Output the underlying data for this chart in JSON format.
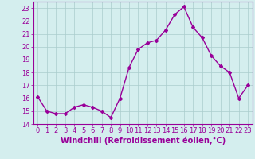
{
  "x": [
    0,
    1,
    2,
    3,
    4,
    5,
    6,
    7,
    8,
    9,
    10,
    11,
    12,
    13,
    14,
    15,
    16,
    17,
    18,
    19,
    20,
    21,
    22,
    23
  ],
  "y": [
    16.1,
    15.0,
    14.8,
    14.8,
    15.3,
    15.5,
    15.3,
    15.0,
    14.5,
    16.0,
    18.4,
    19.8,
    20.3,
    20.5,
    21.3,
    22.5,
    23.1,
    21.5,
    20.7,
    19.3,
    18.5,
    18.0,
    16.0,
    17.0
  ],
  "line_color": "#990099",
  "marker": "D",
  "marker_size": 2,
  "bg_color": "#d4eeee",
  "grid_color": "#aacccc",
  "ylim": [
    14,
    23.5
  ],
  "yticks": [
    14,
    15,
    16,
    17,
    18,
    19,
    20,
    21,
    22,
    23
  ],
  "xticks": [
    0,
    1,
    2,
    3,
    4,
    5,
    6,
    7,
    8,
    9,
    10,
    11,
    12,
    13,
    14,
    15,
    16,
    17,
    18,
    19,
    20,
    21,
    22,
    23
  ],
  "xlabel": "Windchill (Refroidissement éolien,°C)",
  "xlabel_fontsize": 7,
  "tick_fontsize": 6,
  "line_width": 1.0
}
